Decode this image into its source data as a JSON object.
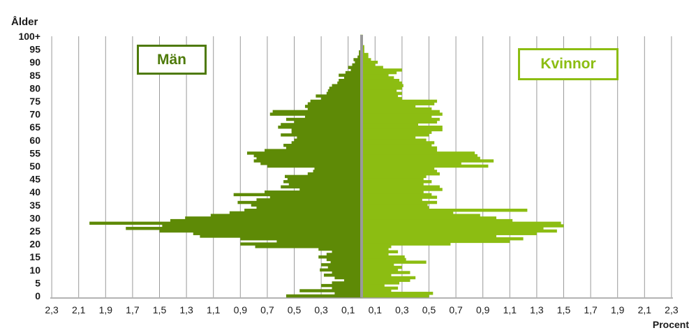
{
  "chart_data": {
    "type": "bar",
    "orientation": "horizontal",
    "title": "",
    "ylabel": "Ålder",
    "xlabel": "Procent",
    "ylim": [
      0,
      100
    ],
    "xlim": [
      -2.3,
      2.3
    ],
    "y_tick_labels": [
      "0",
      "5",
      "10",
      "15",
      "20",
      "25",
      "30",
      "35",
      "40",
      "45",
      "50",
      "55",
      "60",
      "65",
      "70",
      "75",
      "80",
      "85",
      "90",
      "95",
      "100+"
    ],
    "x_tick_labels": [
      "2,3",
      "2,1",
      "1,9",
      "1,7",
      "1,5",
      "1,3",
      "1,1",
      "0,9",
      "0,7",
      "0,5",
      "0,3",
      "0,1",
      "0,1",
      "0,3",
      "0,5",
      "0,7",
      "0,9",
      "1,1",
      "1,3",
      "1,5",
      "1,7",
      "1,9",
      "2,1",
      "2,3"
    ],
    "grid": true,
    "ages": [
      0,
      1,
      2,
      3,
      4,
      5,
      6,
      7,
      8,
      9,
      10,
      11,
      12,
      13,
      14,
      15,
      16,
      17,
      18,
      19,
      20,
      21,
      22,
      23,
      24,
      25,
      26,
      27,
      28,
      29,
      30,
      31,
      32,
      33,
      34,
      35,
      36,
      37,
      38,
      39,
      40,
      41,
      42,
      43,
      44,
      45,
      46,
      47,
      48,
      49,
      50,
      51,
      52,
      53,
      54,
      55,
      56,
      57,
      58,
      59,
      60,
      61,
      62,
      63,
      64,
      65,
      66,
      67,
      68,
      69,
      70,
      71,
      72,
      73,
      74,
      75,
      76,
      77,
      78,
      79,
      80,
      81,
      82,
      83,
      84,
      85,
      86,
      87,
      88,
      89,
      90,
      91,
      92,
      93,
      94,
      95,
      96,
      97,
      98,
      99,
      100
    ],
    "series": [
      {
        "name": "Män",
        "color": "#5e8a06",
        "values": [
          0.56,
          0.2,
          0.46,
          0.22,
          0.3,
          0.22,
          0.13,
          0.2,
          0.28,
          0.22,
          0.31,
          0.25,
          0.3,
          0.23,
          0.26,
          0.32,
          0.26,
          0.22,
          0.32,
          0.79,
          0.9,
          0.63,
          0.9,
          1.2,
          1.25,
          1.5,
          1.75,
          1.48,
          2.02,
          1.42,
          1.31,
          1.12,
          0.98,
          0.87,
          0.78,
          0.82,
          0.92,
          0.78,
          0.68,
          0.95,
          0.72,
          0.46,
          0.6,
          0.54,
          0.58,
          0.55,
          0.57,
          0.4,
          0.36,
          0.35,
          0.7,
          0.75,
          0.8,
          0.78,
          0.8,
          0.85,
          0.72,
          0.56,
          0.58,
          0.52,
          0.5,
          0.48,
          0.6,
          0.52,
          0.52,
          0.62,
          0.6,
          0.5,
          0.56,
          0.42,
          0.68,
          0.66,
          0.4,
          0.42,
          0.4,
          0.38,
          0.3,
          0.34,
          0.26,
          0.25,
          0.24,
          0.22,
          0.18,
          0.17,
          0.13,
          0.17,
          0.12,
          0.08,
          0.1,
          0.07,
          0.05,
          0.06,
          0.03,
          0.02,
          0.02,
          0.01,
          0.01,
          0.01,
          0.01,
          0.01,
          0.01
        ]
      },
      {
        "name": "Kvinnor",
        "color": "#8cbd12",
        "values": [
          0.5,
          0.53,
          0.22,
          0.27,
          0.17,
          0.28,
          0.36,
          0.4,
          0.22,
          0.36,
          0.27,
          0.3,
          0.24,
          0.48,
          0.33,
          0.32,
          0.2,
          0.27,
          0.2,
          0.22,
          0.66,
          1.1,
          1.2,
          1.0,
          1.3,
          1.45,
          1.35,
          1.5,
          1.48,
          1.12,
          1.0,
          0.88,
          0.68,
          1.23,
          0.5,
          0.49,
          0.56,
          0.45,
          0.56,
          0.52,
          0.46,
          0.6,
          0.58,
          0.46,
          0.52,
          0.46,
          0.48,
          0.58,
          0.56,
          0.54,
          0.94,
          0.74,
          0.98,
          0.88,
          0.86,
          0.84,
          0.56,
          0.56,
          0.52,
          0.54,
          0.48,
          0.4,
          0.5,
          0.52,
          0.6,
          0.6,
          0.42,
          0.56,
          0.58,
          0.52,
          0.6,
          0.58,
          0.52,
          0.4,
          0.54,
          0.56,
          0.3,
          0.27,
          0.3,
          0.26,
          0.3,
          0.31,
          0.3,
          0.28,
          0.24,
          0.2,
          0.26,
          0.3,
          0.16,
          0.1,
          0.12,
          0.07,
          0.05,
          0.05,
          0.02,
          0.02,
          0.02,
          0.01,
          0.01,
          0.01,
          0.01
        ]
      }
    ]
  }
}
